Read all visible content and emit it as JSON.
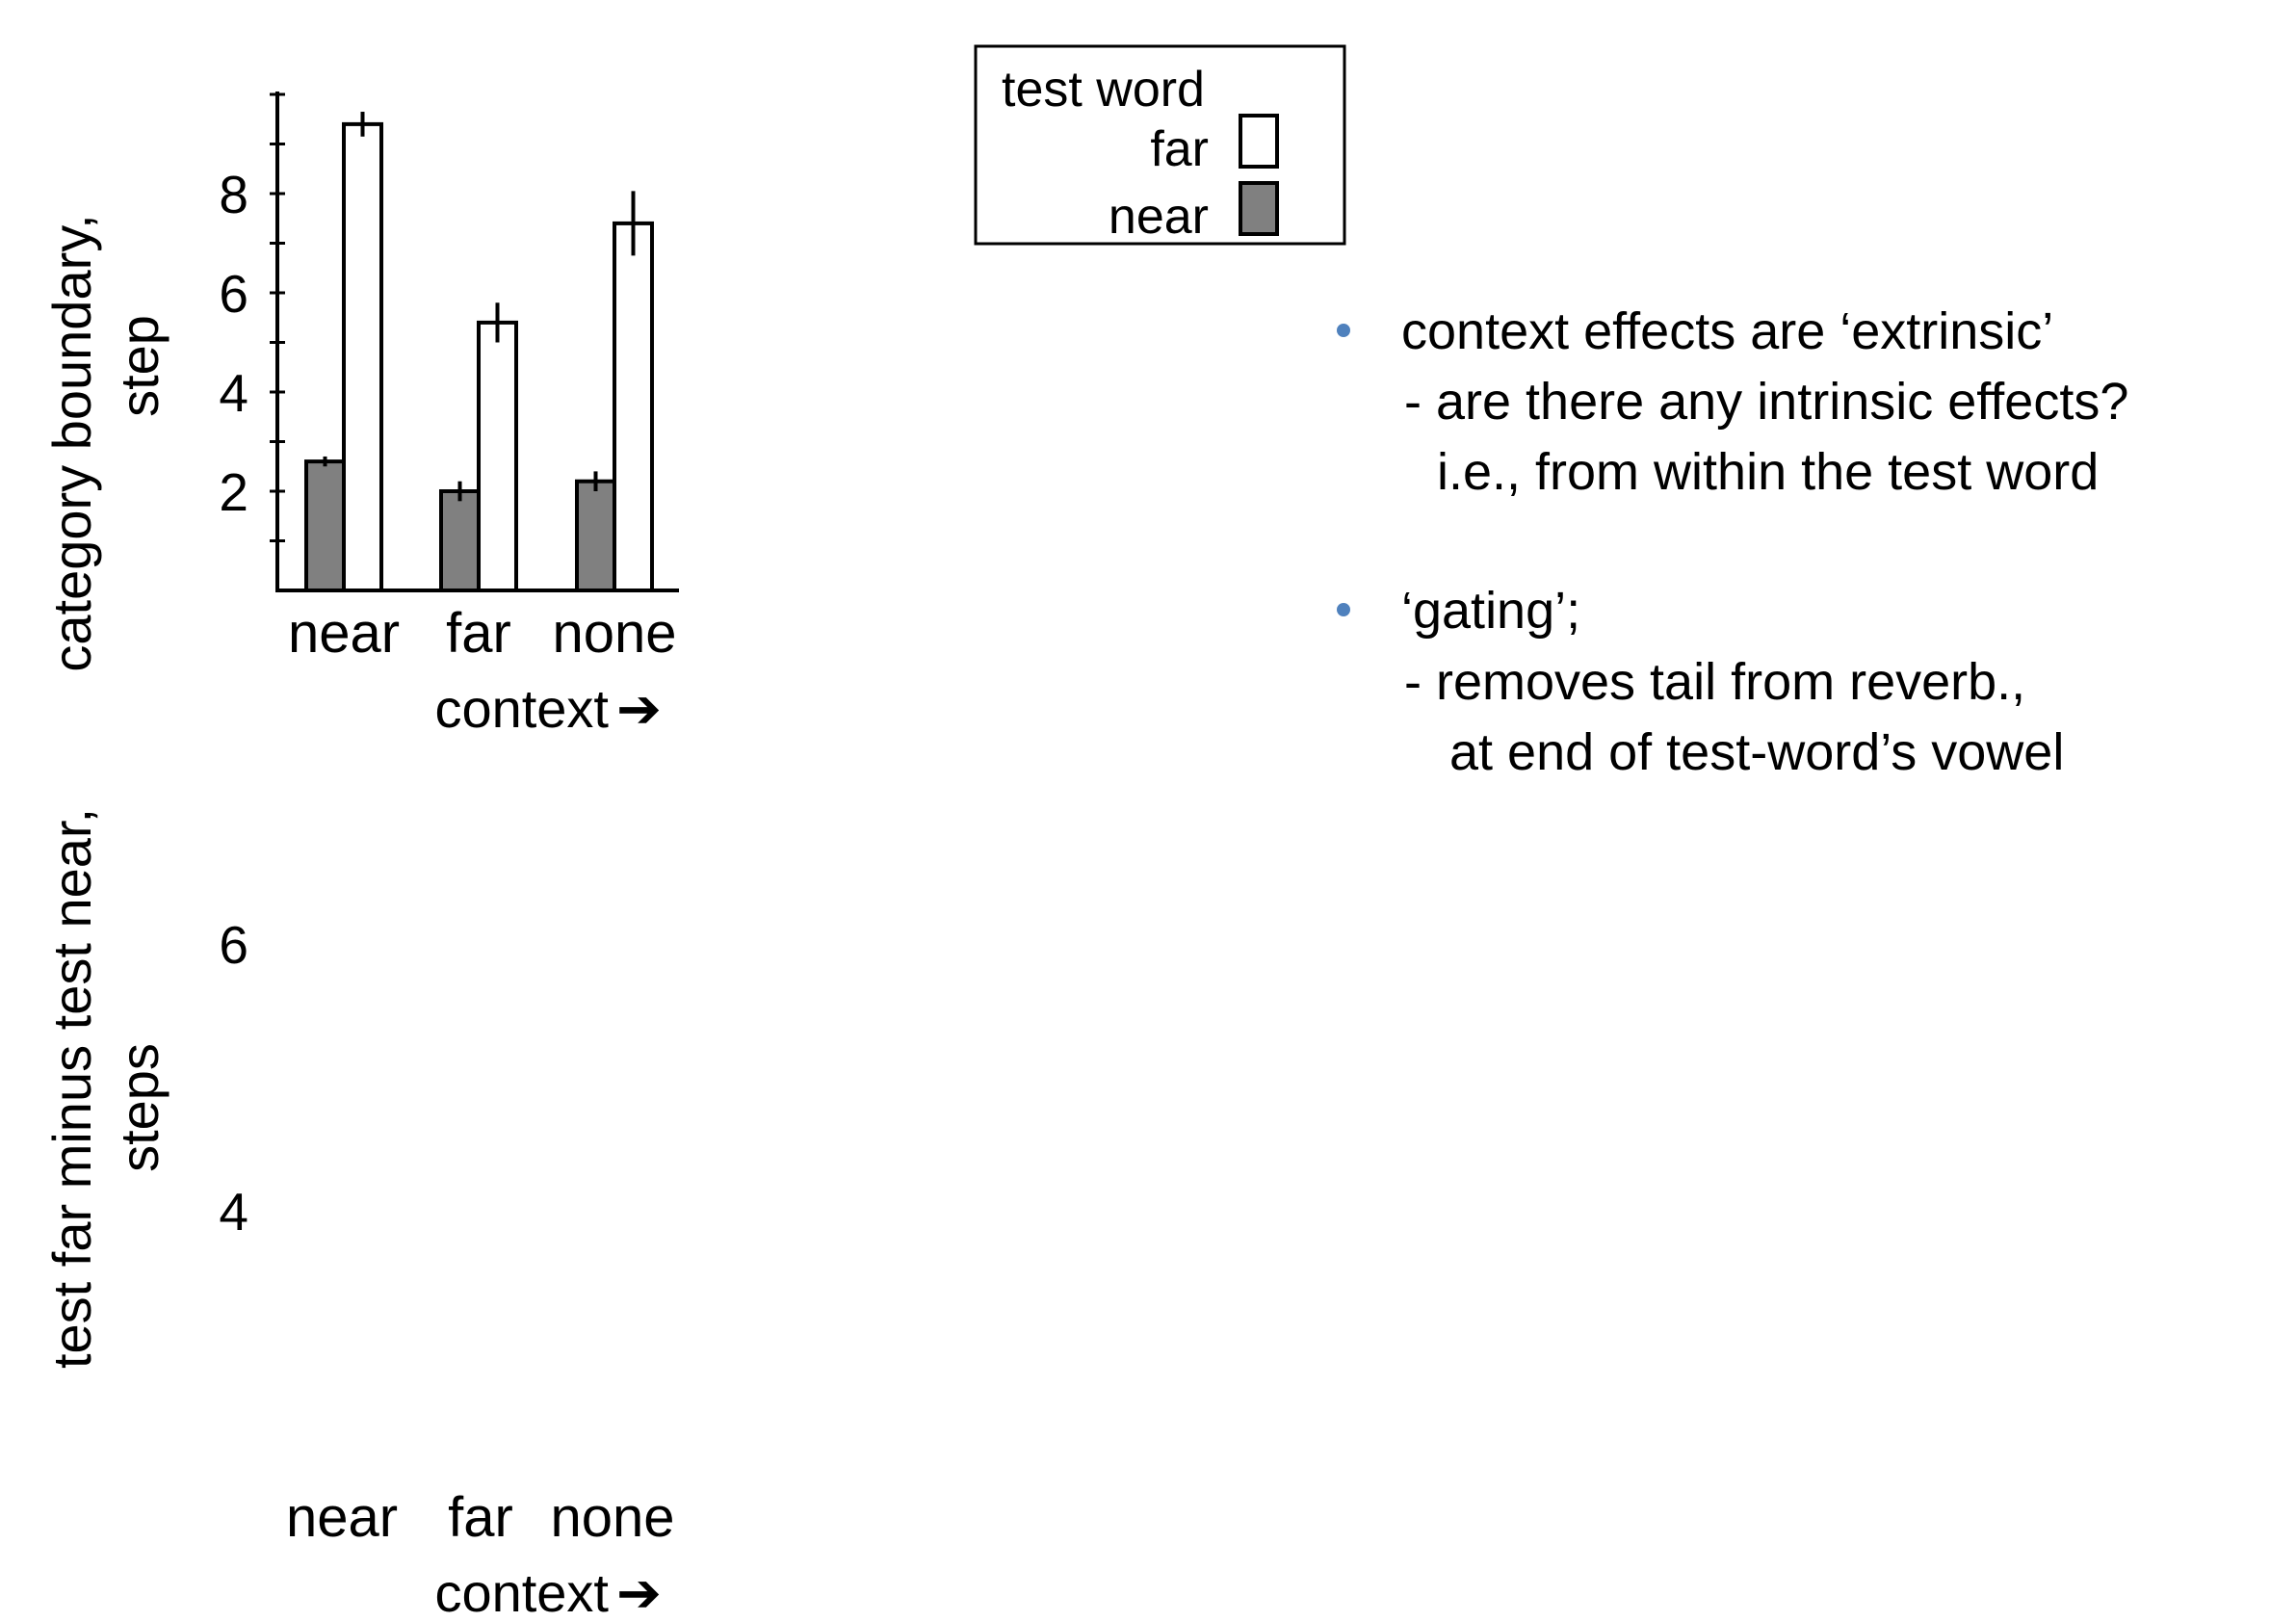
{
  "legend": {
    "title": "test word",
    "entries": [
      {
        "label": "far",
        "color": "#ffffff"
      },
      {
        "label": "near",
        "color": "#808080"
      }
    ]
  },
  "bullets": [
    {
      "text": "context effects are ‘extrinsic’",
      "sub": [
        "- are there any intrinsic effects?",
        "i.e., from within the test word"
      ]
    },
    {
      "text": "‘gating’;",
      "sub": [
        "- removes tail from reverb.,",
        "at end of test-word’s vowel"
      ]
    }
  ],
  "chart_data": [
    {
      "type": "bar",
      "ylabel": [
        "category boundary,",
        "step"
      ],
      "xlabel": "context",
      "xlabel_arrow": "➔",
      "categories": [
        "near",
        "far",
        "none"
      ],
      "series": [
        {
          "name": "near",
          "values": [
            2.6,
            2.0,
            2.2
          ],
          "errors": [
            0.1,
            0.2,
            0.2
          ],
          "color": "#808080"
        },
        {
          "name": "far",
          "values": [
            9.4,
            5.4,
            7.4
          ],
          "errors": [
            0.25,
            0.4,
            0.65
          ],
          "color": "#ffffff"
        }
      ],
      "ylim": [
        0,
        10
      ],
      "yticks": [
        2,
        4,
        6,
        8
      ],
      "grid": false,
      "legend_position": "top-center"
    },
    {
      "type": "bar",
      "ylabel": [
        "test far minus test near,",
        "steps"
      ],
      "xlabel": "context",
      "xlabel_arrow": "➔",
      "categories": [
        "near",
        "far",
        "none"
      ],
      "series": [],
      "yticks": [
        4,
        6
      ]
    }
  ]
}
